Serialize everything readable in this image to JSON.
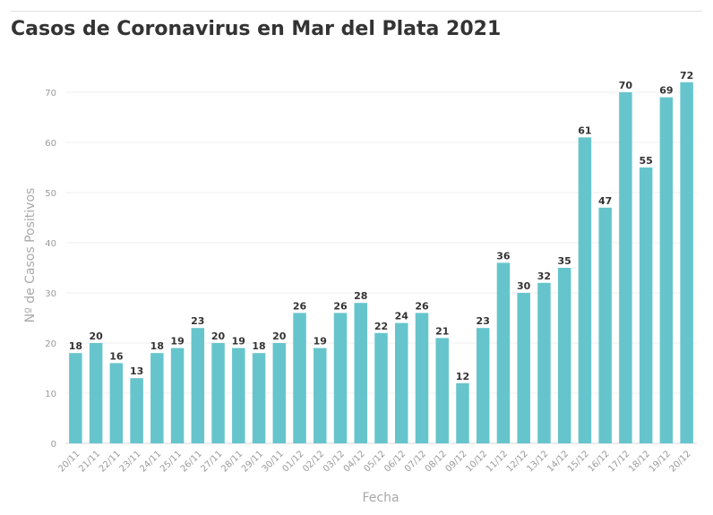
{
  "chart_data": {
    "type": "bar",
    "title": "Casos de Coronavirus en Mar del Plata 2021",
    "xlabel": "Fecha",
    "ylabel": "Nº de Casos Positivos",
    "ylim": [
      0,
      75
    ],
    "yticks": [
      0,
      10,
      20,
      30,
      40,
      50,
      60,
      70
    ],
    "grid": true,
    "bar_color": "#66c5cc",
    "categories": [
      "20/11",
      "21/11",
      "22/11",
      "23/11",
      "24/11",
      "25/11",
      "26/11",
      "27/11",
      "28/11",
      "29/11",
      "30/11",
      "01/12",
      "02/12",
      "03/12",
      "04/12",
      "05/12",
      "06/12",
      "07/12",
      "08/12",
      "09/12",
      "10/12",
      "11/12",
      "12/12",
      "13/12",
      "14/12",
      "15/12",
      "16/12",
      "17/12",
      "18/12",
      "19/12",
      "20/12"
    ],
    "values": [
      18,
      20,
      16,
      13,
      18,
      19,
      23,
      20,
      19,
      18,
      20,
      26,
      19,
      26,
      28,
      22,
      24,
      26,
      21,
      12,
      23,
      36,
      30,
      32,
      35,
      61,
      47,
      70,
      55,
      69,
      72
    ]
  }
}
